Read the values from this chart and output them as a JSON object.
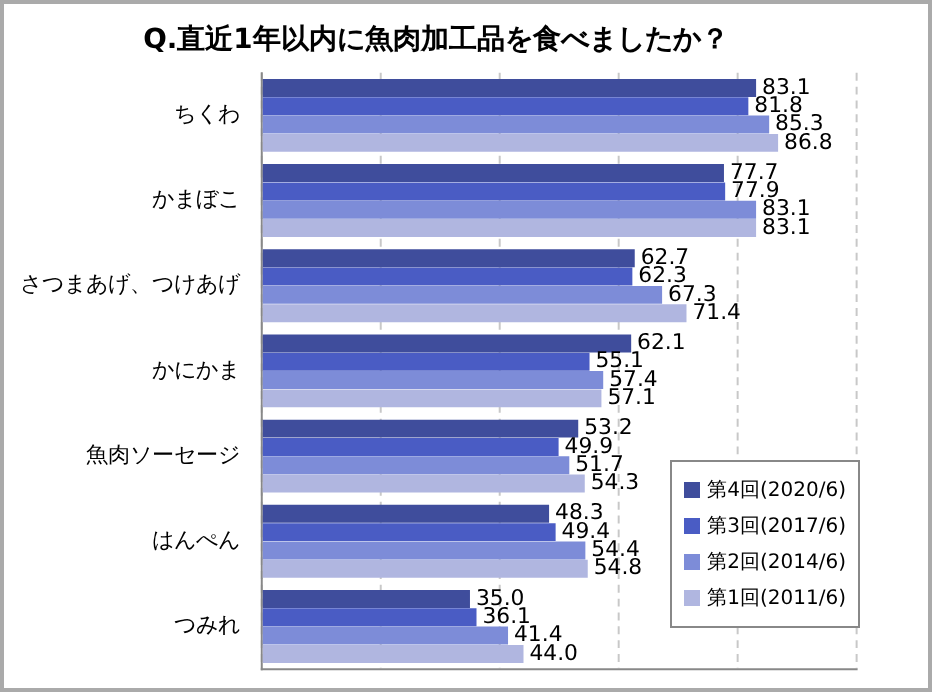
{
  "chart_data": {
    "type": "bar",
    "orientation": "horizontal",
    "title": "Q.直近1年以内に魚肉加工品を食べましたか？",
    "categories": [
      "ちくわ",
      "かまぼこ",
      "さつまあげ、つけあげ",
      "かにかま",
      "魚肉ソーセージ",
      "はんぺん",
      "つみれ"
    ],
    "series": [
      {
        "name": "第4回(2020/6)",
        "color": "#3f4d9c",
        "values": [
          83.1,
          77.7,
          62.7,
          62.1,
          53.2,
          48.3,
          35.0
        ],
        "value_labels": [
          "83.1",
          "77.7",
          "62.7",
          "62.1",
          "53.2",
          "48.3",
          "35.0"
        ]
      },
      {
        "name": "第3回(2017/6)",
        "color": "#4a5cc4",
        "values": [
          81.8,
          77.9,
          62.3,
          55.1,
          49.9,
          49.4,
          36.1
        ],
        "value_labels": [
          "81.8",
          "77.9",
          "62.3",
          "55.1",
          "49.9",
          "49.4",
          "36.1"
        ]
      },
      {
        "name": "第2回(2014/6)",
        "color": "#7d8cd8",
        "values": [
          85.3,
          83.1,
          67.3,
          57.4,
          51.7,
          54.4,
          41.4
        ],
        "value_labels": [
          "85.3",
          "83.1",
          "67.3",
          "57.4",
          "51.7",
          "54.4",
          "41.4"
        ]
      },
      {
        "name": "第1回(2011/6)",
        "color": "#b0b6e0",
        "values": [
          86.8,
          83.1,
          71.4,
          57.1,
          54.3,
          54.8,
          44.0
        ],
        "value_labels": [
          "86.8",
          "83.1",
          "71.4",
          "57.1",
          "54.3",
          "54.8",
          "44.0"
        ]
      }
    ],
    "xlim": [
      0,
      100
    ],
    "xticks": [
      {
        "value": 0,
        "label": null
      },
      {
        "value": 20,
        "label": null
      },
      {
        "value": 40,
        "label": null
      },
      {
        "value": 60,
        "label": null
      },
      {
        "value": 80,
        "label": null
      },
      {
        "value": 100,
        "label": null
      }
    ],
    "grid": "x",
    "legend": "bottom right"
  }
}
